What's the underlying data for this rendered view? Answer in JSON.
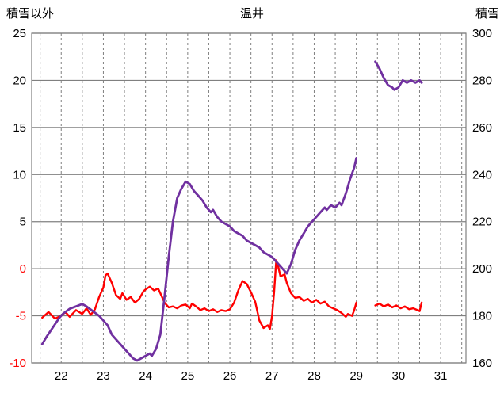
{
  "header": {
    "left_axis_title": "積雪以外",
    "title": "温井",
    "right_axis_title": "積雪"
  },
  "chart_data": {
    "type": "line",
    "title": "温井",
    "left_axis": {
      "label": "積雪以外",
      "min": -10,
      "max": 25,
      "ticks": [
        25,
        20,
        15,
        10,
        5,
        0,
        -5,
        -10
      ],
      "label_color": "#000000",
      "negative_label_color": "#ff0000"
    },
    "right_axis": {
      "label": "積雪",
      "min": 160,
      "max": 300,
      "ticks": [
        300,
        280,
        260,
        240,
        220,
        200,
        180,
        160
      ],
      "label_color": "#000000"
    },
    "x_axis": {
      "min": 21.3,
      "max": 31.6,
      "tick_labels": [
        22,
        23,
        24,
        25,
        26,
        27,
        28,
        29,
        30,
        31
      ],
      "gridline_start": 21.5,
      "gridline_end": 31.5,
      "gridline_step": 0.5,
      "label_color": "#000000"
    },
    "grid": {
      "color": "#808080",
      "h_style": "solid",
      "v_style": "dashed"
    },
    "series": [
      {
        "name": "積雪以外",
        "axis": "left",
        "color": "#ff0000",
        "width": 2.4,
        "segments": [
          [
            [
              21.55,
              -5.2
            ],
            [
              21.7,
              -4.6
            ],
            [
              21.85,
              -5.3
            ],
            [
              22.0,
              -5.0
            ],
            [
              22.1,
              -4.6
            ],
            [
              22.2,
              -5.1
            ],
            [
              22.35,
              -4.4
            ],
            [
              22.5,
              -4.8
            ],
            [
              22.6,
              -4.2
            ],
            [
              22.7,
              -4.9
            ],
            [
              22.8,
              -4.3
            ],
            [
              22.9,
              -3.0
            ],
            [
              23.0,
              -2.0
            ],
            [
              23.05,
              -0.7
            ],
            [
              23.1,
              -0.5
            ],
            [
              23.2,
              -1.5
            ],
            [
              23.3,
              -2.8
            ],
            [
              23.4,
              -3.2
            ],
            [
              23.45,
              -2.6
            ],
            [
              23.55,
              -3.3
            ],
            [
              23.65,
              -3.0
            ],
            [
              23.75,
              -3.6
            ],
            [
              23.85,
              -3.2
            ],
            [
              23.95,
              -2.4
            ],
            [
              24.0,
              -2.2
            ],
            [
              24.1,
              -1.9
            ],
            [
              24.2,
              -2.3
            ],
            [
              24.3,
              -2.1
            ],
            [
              24.35,
              -2.6
            ],
            [
              24.45,
              -3.6
            ],
            [
              24.55,
              -4.1
            ],
            [
              24.65,
              -4.0
            ],
            [
              24.75,
              -4.2
            ],
            [
              24.85,
              -3.9
            ],
            [
              24.95,
              -3.8
            ],
            [
              25.05,
              -4.2
            ],
            [
              25.1,
              -3.7
            ],
            [
              25.2,
              -4.0
            ],
            [
              25.3,
              -4.4
            ],
            [
              25.4,
              -4.2
            ],
            [
              25.5,
              -4.5
            ],
            [
              25.6,
              -4.3
            ],
            [
              25.7,
              -4.6
            ],
            [
              25.8,
              -4.4
            ],
            [
              25.9,
              -4.5
            ],
            [
              26.0,
              -4.3
            ],
            [
              26.1,
              -3.6
            ],
            [
              26.2,
              -2.3
            ],
            [
              26.3,
              -1.3
            ],
            [
              26.4,
              -1.6
            ],
            [
              26.5,
              -2.5
            ],
            [
              26.6,
              -3.5
            ],
            [
              26.7,
              -5.5
            ],
            [
              26.8,
              -6.3
            ],
            [
              26.9,
              -6.0
            ],
            [
              26.95,
              -6.4
            ],
            [
              27.0,
              -5.0
            ],
            [
              27.05,
              -2.5
            ],
            [
              27.1,
              0.9
            ],
            [
              27.15,
              0.2
            ],
            [
              27.2,
              -0.8
            ],
            [
              27.3,
              -0.6
            ],
            [
              27.35,
              -1.5
            ],
            [
              27.45,
              -2.6
            ],
            [
              27.55,
              -3.1
            ],
            [
              27.65,
              -3.0
            ],
            [
              27.75,
              -3.4
            ],
            [
              27.85,
              -3.2
            ],
            [
              27.95,
              -3.6
            ],
            [
              28.05,
              -3.3
            ],
            [
              28.15,
              -3.7
            ],
            [
              28.25,
              -3.5
            ],
            [
              28.35,
              -4.0
            ],
            [
              28.45,
              -4.2
            ],
            [
              28.55,
              -4.4
            ],
            [
              28.65,
              -4.7
            ],
            [
              28.75,
              -5.1
            ],
            [
              28.8,
              -4.8
            ],
            [
              28.9,
              -5.0
            ],
            [
              28.95,
              -4.4
            ],
            [
              29.0,
              -3.6
            ]
          ],
          [
            [
              29.45,
              -3.9
            ],
            [
              29.55,
              -3.7
            ],
            [
              29.65,
              -4.0
            ],
            [
              29.75,
              -3.8
            ],
            [
              29.85,
              -4.1
            ],
            [
              29.95,
              -3.9
            ],
            [
              30.05,
              -4.2
            ],
            [
              30.15,
              -4.0
            ],
            [
              30.25,
              -4.3
            ],
            [
              30.35,
              -4.2
            ],
            [
              30.45,
              -4.4
            ],
            [
              30.5,
              -4.5
            ],
            [
              30.55,
              -3.6
            ]
          ]
        ]
      },
      {
        "name": "積雪",
        "axis": "right",
        "color": "#7030a0",
        "width": 2.8,
        "segments": [
          [
            [
              21.55,
              168
            ],
            [
              21.65,
              171
            ],
            [
              21.8,
              175
            ],
            [
              21.95,
              179
            ],
            [
              22.05,
              181
            ],
            [
              22.2,
              183
            ],
            [
              22.35,
              184
            ],
            [
              22.5,
              185
            ],
            [
              22.6,
              184
            ],
            [
              22.75,
              182
            ],
            [
              22.9,
              180
            ],
            [
              23.0,
              178
            ],
            [
              23.1,
              176
            ],
            [
              23.2,
              172
            ],
            [
              23.3,
              170
            ],
            [
              23.4,
              168
            ],
            [
              23.5,
              166
            ],
            [
              23.6,
              164
            ],
            [
              23.7,
              162
            ],
            [
              23.8,
              161
            ],
            [
              23.9,
              162
            ],
            [
              24.0,
              163
            ],
            [
              24.1,
              164
            ],
            [
              24.15,
              163
            ],
            [
              24.25,
              166
            ],
            [
              24.35,
              172
            ],
            [
              24.45,
              188
            ],
            [
              24.55,
              205
            ],
            [
              24.65,
              220
            ],
            [
              24.75,
              230
            ],
            [
              24.85,
              234
            ],
            [
              24.95,
              237
            ],
            [
              25.05,
              236
            ],
            [
              25.15,
              233
            ],
            [
              25.25,
              231
            ],
            [
              25.35,
              229
            ],
            [
              25.45,
              226
            ],
            [
              25.55,
              224
            ],
            [
              25.6,
              225
            ],
            [
              25.7,
              222
            ],
            [
              25.8,
              220
            ],
            [
              25.9,
              219
            ],
            [
              26.0,
              218
            ],
            [
              26.1,
              216
            ],
            [
              26.2,
              215
            ],
            [
              26.3,
              214
            ],
            [
              26.4,
              212
            ],
            [
              26.5,
              211
            ],
            [
              26.6,
              210
            ],
            [
              26.7,
              209
            ],
            [
              26.8,
              207
            ],
            [
              26.9,
              206
            ],
            [
              27.0,
              205
            ],
            [
              27.1,
              203
            ],
            [
              27.2,
              201
            ],
            [
              27.3,
              199
            ],
            [
              27.35,
              198
            ],
            [
              27.45,
              202
            ],
            [
              27.55,
              208
            ],
            [
              27.65,
              212
            ],
            [
              27.75,
              215
            ],
            [
              27.85,
              218
            ],
            [
              27.95,
              220
            ],
            [
              28.05,
              222
            ],
            [
              28.15,
              224
            ],
            [
              28.25,
              226
            ],
            [
              28.3,
              225
            ],
            [
              28.4,
              227
            ],
            [
              28.5,
              226
            ],
            [
              28.6,
              228
            ],
            [
              28.65,
              227
            ],
            [
              28.75,
              232
            ],
            [
              28.85,
              238
            ],
            [
              28.95,
              243
            ],
            [
              29.0,
              247
            ]
          ],
          [
            [
              29.45,
              288
            ],
            [
              29.55,
              285
            ],
            [
              29.65,
              281
            ],
            [
              29.75,
              278
            ],
            [
              29.85,
              277
            ],
            [
              29.9,
              276
            ],
            [
              30.0,
              277
            ],
            [
              30.1,
              280
            ],
            [
              30.2,
              279
            ],
            [
              30.3,
              280
            ],
            [
              30.4,
              279
            ],
            [
              30.5,
              280
            ],
            [
              30.55,
              279
            ]
          ]
        ]
      }
    ],
    "legend": "none"
  }
}
